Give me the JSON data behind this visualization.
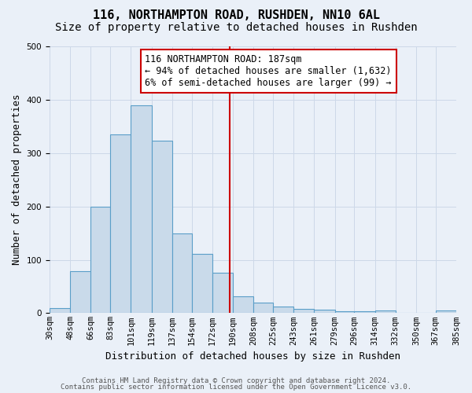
{
  "title": "116, NORTHAMPTON ROAD, RUSHDEN, NN10 6AL",
  "subtitle": "Size of property relative to detached houses in Rushden",
  "xlabel": "Distribution of detached houses by size in Rushden",
  "ylabel": "Number of detached properties",
  "bins": [
    30,
    48,
    66,
    83,
    101,
    119,
    137,
    154,
    172,
    190,
    208,
    225,
    243,
    261,
    279,
    296,
    314,
    332,
    350,
    367,
    385
  ],
  "heights": [
    10,
    78,
    199,
    335,
    390,
    323,
    150,
    111,
    75,
    31,
    19,
    13,
    8,
    6,
    4,
    4,
    5,
    0,
    0,
    5
  ],
  "tick_labels": [
    "30sqm",
    "48sqm",
    "66sqm",
    "83sqm",
    "101sqm",
    "119sqm",
    "137sqm",
    "154sqm",
    "172sqm",
    "190sqm",
    "208sqm",
    "225sqm",
    "243sqm",
    "261sqm",
    "279sqm",
    "296sqm",
    "314sqm",
    "332sqm",
    "350sqm",
    "367sqm",
    "385sqm"
  ],
  "bar_color": "#c9daea",
  "bar_edge_color": "#5a9ec8",
  "grid_color": "#cdd8e8",
  "background_color": "#eaf0f8",
  "vline_x": 187,
  "vline_color": "#cc0000",
  "annotation_text": "116 NORTHAMPTON ROAD: 187sqm\n← 94% of detached houses are smaller (1,632)\n6% of semi-detached houses are larger (99) →",
  "annotation_box_color": "#ffffff",
  "annotation_box_edge": "#cc0000",
  "footer_line1": "Contains HM Land Registry data © Crown copyright and database right 2024.",
  "footer_line2": "Contains public sector information licensed under the Open Government Licence v3.0.",
  "ylim": [
    0,
    500
  ],
  "title_fontsize": 11,
  "subtitle_fontsize": 10,
  "ylabel_fontsize": 9,
  "xlabel_fontsize": 9,
  "tick_fontsize": 7.5,
  "annotation_fontsize": 8.5,
  "footer_fontsize": 6.5
}
